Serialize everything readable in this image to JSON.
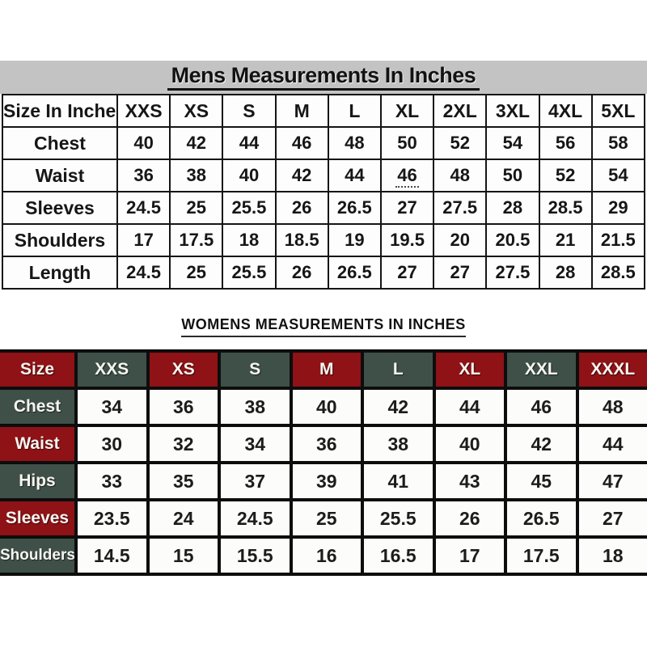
{
  "colors": {
    "mens_band": "#c3c3c3",
    "table_line_thin": "#151515",
    "table_line_thick": "#0d0d0d",
    "womens_maroon": "#8e1216",
    "womens_teal": "#3f5049",
    "cell_bg": "#fdfdfd",
    "text_dark": "#161616",
    "text_light": "#f7f5f0"
  },
  "chart_data": [
    {
      "type": "table",
      "id": "mens",
      "title": "Mens Measurements In Inches",
      "columns": [
        "Size In Inches",
        "XXS",
        "XS",
        "S",
        "M",
        "L",
        "XL",
        "2XL",
        "3XL",
        "4XL",
        "5XL"
      ],
      "rows": [
        {
          "label": "Chest",
          "values": [
            "40",
            "42",
            "44",
            "46",
            "48",
            "50",
            "52",
            "54",
            "56",
            "58"
          ]
        },
        {
          "label": "Waist",
          "values": [
            "36",
            "38",
            "40",
            "42",
            "44",
            "46",
            "48",
            "50",
            "52",
            "54"
          ],
          "dotted_underline_index": 5
        },
        {
          "label": "Sleeves",
          "values": [
            "24.5",
            "25",
            "25.5",
            "26",
            "26.5",
            "27",
            "27.5",
            "28",
            "28.5",
            "29"
          ]
        },
        {
          "label": "Shoulders",
          "values": [
            "17",
            "17.5",
            "18",
            "18.5",
            "19",
            "19.5",
            "20",
            "20.5",
            "21",
            "21.5"
          ]
        },
        {
          "label": "Length",
          "values": [
            "24.5",
            "25",
            "25.5",
            "26",
            "26.5",
            "27",
            "27",
            "27.5",
            "28",
            "28.5"
          ]
        }
      ],
      "layout": {
        "grid": "thin-black",
        "header_bg": "white",
        "title_band_bg": "#c3c3c3",
        "title_underlined": true
      }
    },
    {
      "type": "table",
      "id": "womens",
      "title": "WOMENS MEASUREMENTS IN INCHES",
      "columns": [
        "Size",
        "XXS",
        "XS",
        "S",
        "M",
        "L",
        "XL",
        "XXL",
        "XXXL"
      ],
      "header_colors": [
        "maroon",
        "teal",
        "maroon",
        "teal",
        "maroon",
        "teal",
        "maroon",
        "teal",
        "maroon"
      ],
      "rows": [
        {
          "label": "Chest",
          "label_color": "teal",
          "values": [
            "34",
            "36",
            "38",
            "40",
            "42",
            "44",
            "46",
            "48"
          ]
        },
        {
          "label": "Waist",
          "label_color": "maroon",
          "values": [
            "30",
            "32",
            "34",
            "36",
            "38",
            "40",
            "42",
            "44"
          ]
        },
        {
          "label": "Hips",
          "label_color": "teal",
          "values": [
            "33",
            "35",
            "37",
            "39",
            "41",
            "43",
            "45",
            "47"
          ]
        },
        {
          "label": "Sleeves",
          "label_color": "maroon",
          "values": [
            "23.5",
            "24",
            "24.5",
            "25",
            "25.5",
            "26",
            "26.5",
            "27"
          ]
        },
        {
          "label": "Shoulders",
          "label_color": "teal",
          "values": [
            "14.5",
            "15",
            "15.5",
            "16",
            "16.5",
            "17",
            "17.5",
            "18"
          ]
        }
      ],
      "layout": {
        "grid": "thick-black",
        "title_underlined": true,
        "header_alternating": true
      }
    }
  ]
}
